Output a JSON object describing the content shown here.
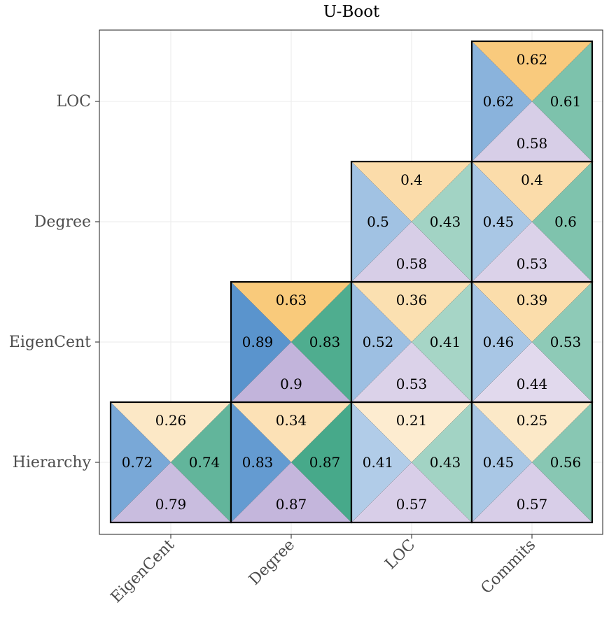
{
  "chart_data": {
    "type": "heatmap",
    "title": "U-Boot",
    "x_categories": [
      "EigenCent",
      "Degree",
      "LOC",
      "Commits"
    ],
    "y_categories": [
      "Hierarchy",
      "EigenCent",
      "Degree",
      "LOC"
    ],
    "grid": true,
    "cell_layout": "each cell split into four triangles: top, left, right, bottom",
    "triangle_colors": {
      "top": "#f5a623",
      "left": "#3a7fc4",
      "right": "#1f9670",
      "bottom": "#b7a6d4"
    },
    "cells": [
      {
        "x": "EigenCent",
        "y": "Hierarchy",
        "top": 0.26,
        "left": 0.72,
        "right": 0.74,
        "bottom": 0.79
      },
      {
        "x": "Degree",
        "y": "Hierarchy",
        "top": 0.34,
        "left": 0.83,
        "right": 0.87,
        "bottom": 0.87
      },
      {
        "x": "LOC",
        "y": "Hierarchy",
        "top": 0.21,
        "left": 0.41,
        "right": 0.43,
        "bottom": 0.57
      },
      {
        "x": "Commits",
        "y": "Hierarchy",
        "top": 0.25,
        "left": 0.45,
        "right": 0.56,
        "bottom": 0.57
      },
      {
        "x": "Degree",
        "y": "EigenCent",
        "top": 0.63,
        "left": 0.89,
        "right": 0.83,
        "bottom": 0.9
      },
      {
        "x": "LOC",
        "y": "EigenCent",
        "top": 0.36,
        "left": 0.52,
        "right": 0.41,
        "bottom": 0.53
      },
      {
        "x": "Commits",
        "y": "EigenCent",
        "top": 0.39,
        "left": 0.46,
        "right": 0.53,
        "bottom": 0.44
      },
      {
        "x": "LOC",
        "y": "Degree",
        "top": 0.4,
        "left": 0.5,
        "right": 0.43,
        "bottom": 0.58
      },
      {
        "x": "Commits",
        "y": "Degree",
        "top": 0.4,
        "left": 0.45,
        "right": 0.6,
        "bottom": 0.53
      },
      {
        "x": "Commits",
        "y": "LOC",
        "top": 0.62,
        "left": 0.62,
        "right": 0.61,
        "bottom": 0.58
      }
    ]
  }
}
